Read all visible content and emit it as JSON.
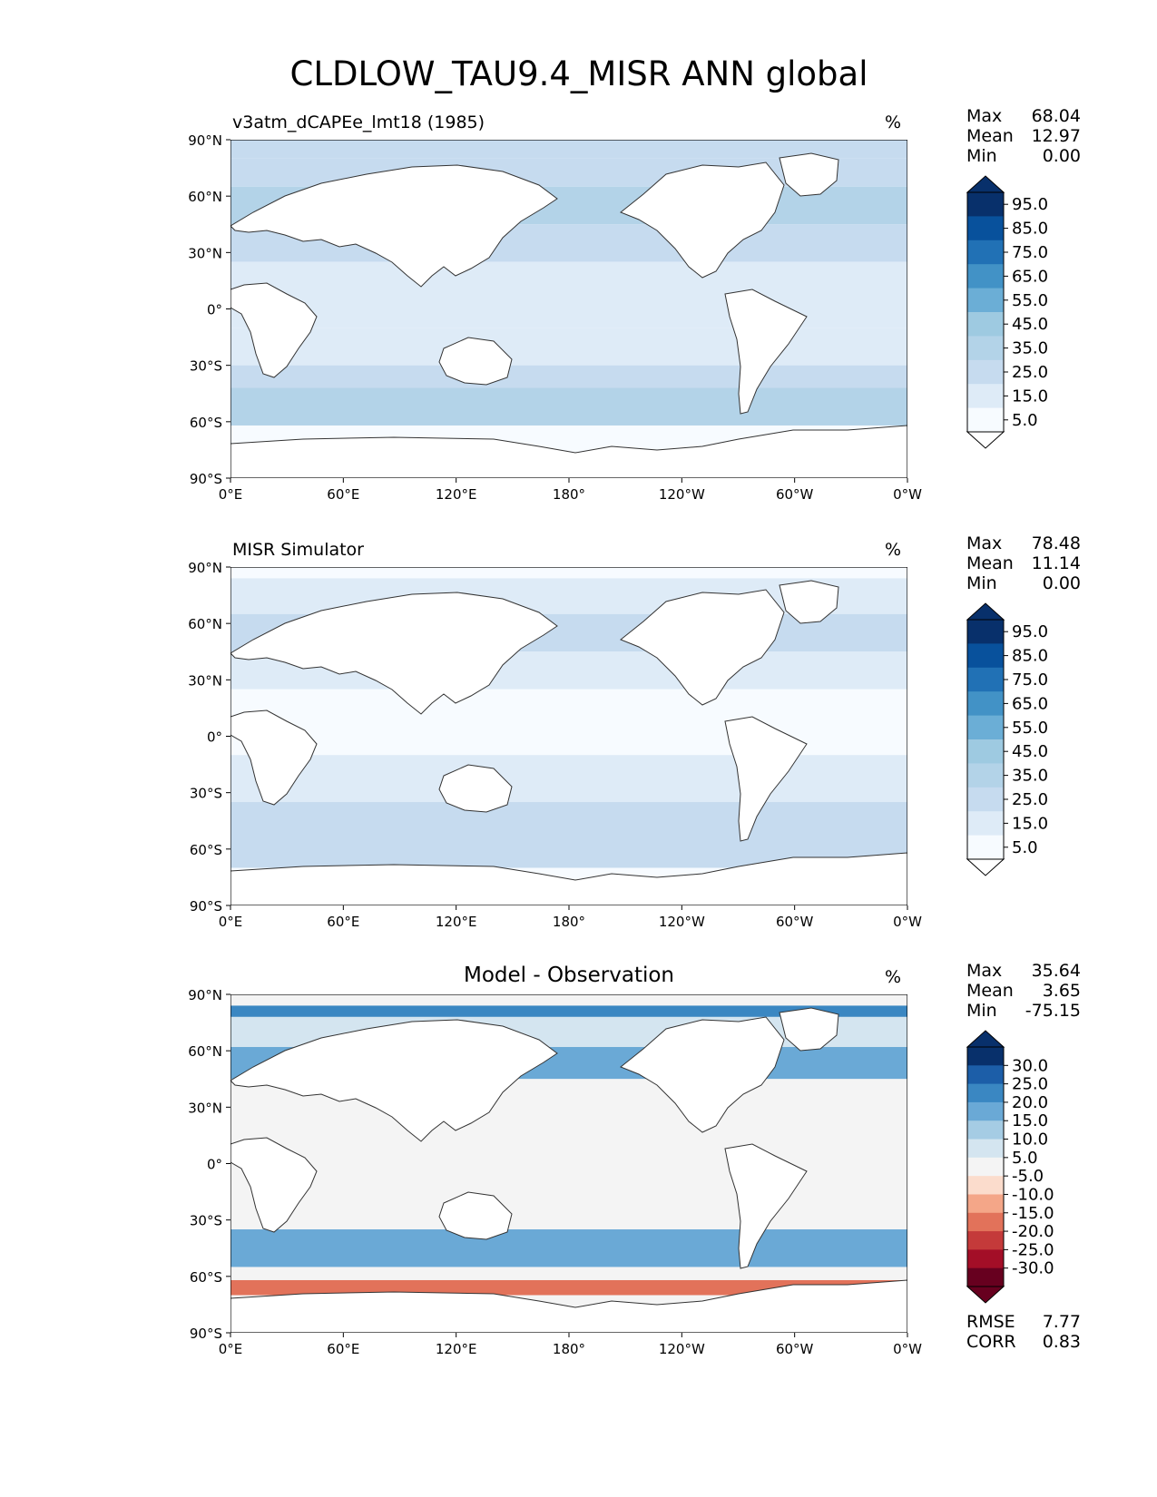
{
  "figure_title": "CLDLOW_TAU9.4_MISR ANN global",
  "chart_data": [
    {
      "type": "heatmap",
      "title": "v3atm_dCAPEe_lmt18 (1985)",
      "units": "%",
      "stats": [
        {
          "label": "Max",
          "value": "68.04"
        },
        {
          "label": "Mean",
          "value": "12.97"
        },
        {
          "label": "Min",
          "value": "0.00"
        }
      ],
      "xticks": [
        "0°E",
        "60°E",
        "120°E",
        "180°",
        "120°W",
        "60°W",
        "0°W"
      ],
      "yticks": [
        "90°N",
        "60°N",
        "30°N",
        "0°",
        "30°S",
        "60°S",
        "90°S"
      ],
      "xlim": [
        0,
        360
      ],
      "ylim": [
        -90,
        90
      ],
      "colorbar": {
        "labels": [
          "95.0",
          "85.0",
          "75.0",
          "65.0",
          "55.0",
          "45.0",
          "35.0",
          "25.0",
          "15.0",
          "5.0"
        ],
        "colors": [
          "#08306b",
          "#08519c",
          "#2171b5",
          "#4292c6",
          "#6baed6",
          "#9ecae1",
          "#b3d3e8",
          "#c6dbef",
          "#deebf7",
          "#f7fbff"
        ],
        "extend": "both"
      },
      "field_bands": [
        {
          "lat": [
            90,
            80
          ],
          "value": 25
        },
        {
          "lat": [
            80,
            65
          ],
          "value": 20
        },
        {
          "lat": [
            65,
            45
          ],
          "value": 30
        },
        {
          "lat": [
            45,
            25
          ],
          "value": 20
        },
        {
          "lat": [
            25,
            -10
          ],
          "value": 10
        },
        {
          "lat": [
            -10,
            -30
          ],
          "value": 15
        },
        {
          "lat": [
            -30,
            -42
          ],
          "value": 22
        },
        {
          "lat": [
            -42,
            -62
          ],
          "value": 38
        },
        {
          "lat": [
            -62,
            -90
          ],
          "value": 5
        }
      ]
    },
    {
      "type": "heatmap",
      "title": "MISR Simulator",
      "units": "%",
      "stats": [
        {
          "label": "Max",
          "value": "78.48"
        },
        {
          "label": "Mean",
          "value": "11.14"
        },
        {
          "label": "Min",
          "value": "0.00"
        }
      ],
      "xticks": [
        "0°E",
        "60°E",
        "120°E",
        "180°",
        "120°W",
        "60°W",
        "0°W"
      ],
      "yticks": [
        "90°N",
        "60°N",
        "30°N",
        "0°",
        "30°S",
        "60°S",
        "90°S"
      ],
      "xlim": [
        0,
        360
      ],
      "ylim": [
        -90,
        90
      ],
      "colorbar": {
        "labels": [
          "95.0",
          "85.0",
          "75.0",
          "65.0",
          "55.0",
          "45.0",
          "35.0",
          "25.0",
          "15.0",
          "5.0"
        ],
        "colors": [
          "#08306b",
          "#08519c",
          "#2171b5",
          "#4292c6",
          "#6baed6",
          "#9ecae1",
          "#b3d3e8",
          "#c6dbef",
          "#deebf7",
          "#f7fbff"
        ],
        "extend": "both"
      },
      "field_bands": [
        {
          "lat": [
            90,
            84
          ],
          "value": 0
        },
        {
          "lat": [
            84,
            65
          ],
          "value": 15
        },
        {
          "lat": [
            65,
            45
          ],
          "value": 20
        },
        {
          "lat": [
            45,
            25
          ],
          "value": 12
        },
        {
          "lat": [
            25,
            -10
          ],
          "value": 6
        },
        {
          "lat": [
            -10,
            -35
          ],
          "value": 12
        },
        {
          "lat": [
            -35,
            -70
          ],
          "value": 20
        },
        {
          "lat": [
            -70,
            -90
          ],
          "value": 0
        }
      ]
    },
    {
      "type": "heatmap",
      "title": "Model - Observation",
      "units": "%",
      "stats": [
        {
          "label": "Max",
          "value": "35.64"
        },
        {
          "label": "Mean",
          "value": "3.65"
        },
        {
          "label": "Min",
          "value": "-75.15"
        }
      ],
      "extra_stats": [
        {
          "label": "RMSE",
          "value": "7.77"
        },
        {
          "label": "CORR",
          "value": "0.83"
        }
      ],
      "xticks": [
        "0°E",
        "60°E",
        "120°E",
        "180°",
        "120°W",
        "60°W",
        "0°W"
      ],
      "yticks": [
        "90°N",
        "60°N",
        "30°N",
        "0°",
        "30°S",
        "60°S",
        "90°S"
      ],
      "xlim": [
        0,
        360
      ],
      "ylim": [
        -90,
        90
      ],
      "colorbar": {
        "labels": [
          "30.0",
          "25.0",
          "20.0",
          "15.0",
          "10.0",
          "5.0",
          "-5.0",
          "-10.0",
          "-15.0",
          "-20.0",
          "-25.0",
          "-30.0"
        ],
        "colors": [
          "#08306b",
          "#1c5ea8",
          "#3a87c2",
          "#6aa9d6",
          "#a5cce4",
          "#d4e5f0",
          "#f4f4f4",
          "#fbdccc",
          "#f4a688",
          "#e2725a",
          "#c43a3a",
          "#a30e27",
          "#67001f"
        ],
        "extend": "both"
      },
      "field_bands": [
        {
          "lat": [
            90,
            84
          ],
          "value": 0
        },
        {
          "lat": [
            84,
            78
          ],
          "value": 20
        },
        {
          "lat": [
            78,
            62
          ],
          "value": 8
        },
        {
          "lat": [
            62,
            45
          ],
          "value": 15
        },
        {
          "lat": [
            45,
            -35
          ],
          "value": 0
        },
        {
          "lat": [
            -35,
            -55
          ],
          "value": 18
        },
        {
          "lat": [
            -55,
            -62
          ],
          "value": 3
        },
        {
          "lat": [
            -62,
            -70
          ],
          "value": -18
        },
        {
          "lat": [
            -70,
            -90
          ],
          "value": 0
        }
      ]
    }
  ]
}
